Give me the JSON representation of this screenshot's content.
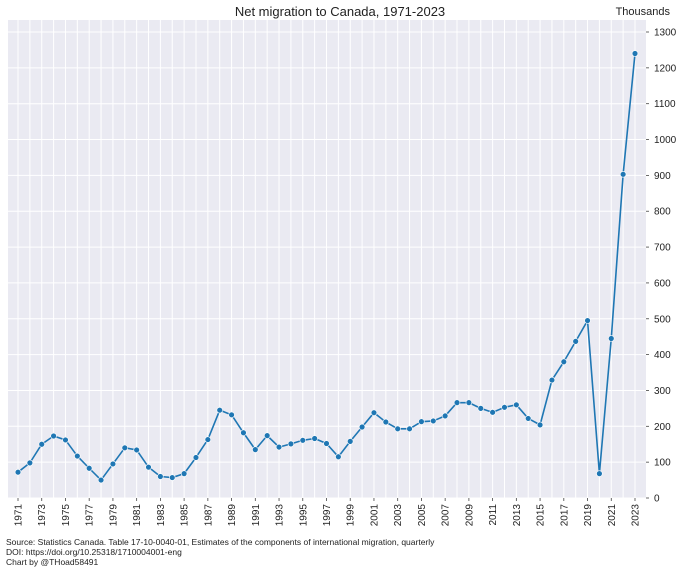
{
  "chart_data": {
    "type": "line",
    "title": "Net migration to Canada, 1971-2023",
    "ylabel": "Thousands",
    "xlabel": "",
    "ylim": [
      0,
      1300
    ],
    "xlim": [
      1971,
      2023
    ],
    "y_ticks": [
      "0",
      "100",
      "200",
      "300",
      "400",
      "500",
      "600",
      "700",
      "800",
      "900",
      "1000",
      "1100",
      "1200",
      "1300"
    ],
    "x_ticks": [
      "1971",
      "1973",
      "1975",
      "1977",
      "1979",
      "1981",
      "1983",
      "1985",
      "1987",
      "1989",
      "1991",
      "1993",
      "1995",
      "1997",
      "1999",
      "2001",
      "2003",
      "2005",
      "2007",
      "2009",
      "2011",
      "2013",
      "2015",
      "2017",
      "2019",
      "2021",
      "2023"
    ],
    "grid": true,
    "y_axis_position": "right",
    "line_color": "#1f77b4",
    "background_color": "#eaeaf2",
    "x": [
      1971,
      1972,
      1973,
      1974,
      1975,
      1976,
      1977,
      1978,
      1979,
      1980,
      1981,
      1982,
      1983,
      1984,
      1985,
      1986,
      1987,
      1988,
      1989,
      1990,
      1991,
      1992,
      1993,
      1994,
      1995,
      1996,
      1997,
      1998,
      1999,
      2000,
      2001,
      2002,
      2003,
      2004,
      2005,
      2006,
      2007,
      2008,
      2009,
      2010,
      2011,
      2012,
      2013,
      2014,
      2015,
      2016,
      2017,
      2018,
      2019,
      2020,
      2021,
      2022,
      2023
    ],
    "values": [
      72,
      98,
      150,
      173,
      162,
      117,
      83,
      50,
      95,
      140,
      134,
      86,
      60,
      57,
      68,
      113,
      163,
      245,
      232,
      182,
      135,
      174,
      142,
      151,
      161,
      166,
      152,
      115,
      158,
      198,
      238,
      212,
      193,
      193,
      213,
      215,
      229,
      266,
      266,
      250,
      239,
      253,
      260,
      222,
      204,
      329,
      380,
      437,
      495,
      68,
      445,
      903,
      1240
    ]
  },
  "source_lines": [
    "Source: Statistics Canada. Table 17-10-0040-01, Estimates of the components of international migration, quarterly",
    "DOI: https://doi.org/10.25318/1710004001-eng",
    "Chart by @THoad58491"
  ]
}
